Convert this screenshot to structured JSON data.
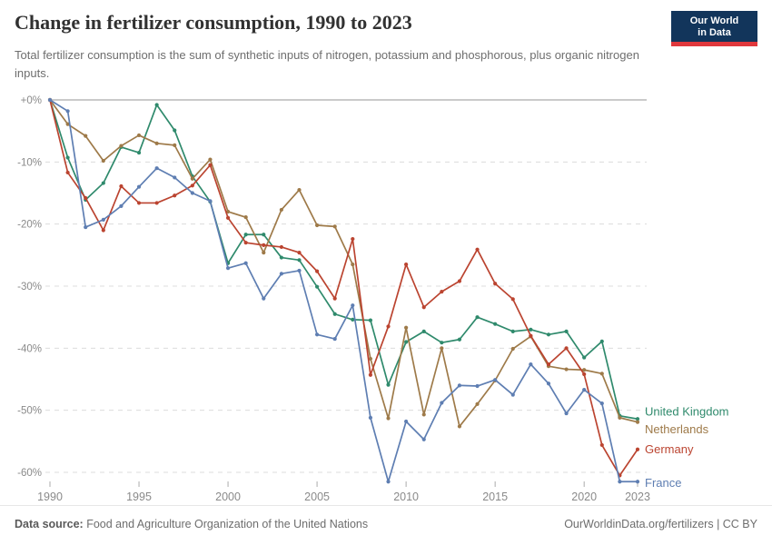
{
  "header": {
    "title": "Change in fertilizer consumption, 1990 to 2023",
    "subtitle": "Total fertilizer consumption is the sum of synthetic inputs of nitrogen, potassium and phosphorous, plus organic nitrogen inputs.",
    "logo": {
      "line1": "Our World",
      "line2": "in Data"
    }
  },
  "footer": {
    "source_label": "Data source:",
    "source_text": " Food and Agriculture Organization of the United Nations",
    "right_text": "OurWorldinData.org/fertilizers | CC BY"
  },
  "chart_data": {
    "type": "line",
    "title": "Change in fertilizer consumption, 1990 to 2023",
    "xlabel": "",
    "ylabel": "",
    "grid": "horizontal-dashed",
    "legend_position": "end-of-line",
    "ylim": [
      -63,
      0
    ],
    "x": [
      1990,
      1991,
      1992,
      1993,
      1994,
      1995,
      1996,
      1997,
      1998,
      1999,
      2000,
      2001,
      2002,
      2003,
      2004,
      2005,
      2006,
      2007,
      2008,
      2009,
      2010,
      2011,
      2012,
      2013,
      2014,
      2015,
      2016,
      2017,
      2018,
      2019,
      2020,
      2021,
      2022,
      2023
    ],
    "x_ticks": {
      "values": [
        1990,
        1995,
        2000,
        2005,
        2010,
        2015,
        2020,
        2023
      ],
      "labels": [
        "1990",
        "1995",
        "2000",
        "2005",
        "2010",
        "2015",
        "2020",
        "2023"
      ]
    },
    "y_ticks": {
      "values": [
        0,
        -10,
        -20,
        -30,
        -40,
        -50,
        -60
      ],
      "labels": [
        "+0%",
        "-10%",
        "-20%",
        "-30%",
        "-40%",
        "-50%",
        "-60%"
      ]
    },
    "axis_color": "#8a8a8a",
    "gridline_color": "#dcdcdc",
    "zero_line_color": "#b8b8b8",
    "series": [
      {
        "name": "United Kingdom",
        "color": "#2F8A6C",
        "values": [
          0,
          -9.3,
          -16.1,
          -13.4,
          -7.6,
          -8.5,
          -0.8,
          -4.9,
          -12.3,
          -16.4,
          -26.3,
          -21.7,
          -21.7,
          -25.4,
          -25.8,
          -30.1,
          -34.5,
          -35.4,
          -35.5,
          -45.9,
          -39.0,
          -37.3,
          -39.1,
          -38.6,
          -35.0,
          -36.1,
          -37.3,
          -37.0,
          -37.8,
          -37.3,
          -41.5,
          -38.9,
          -50.9,
          -51.4
        ]
      },
      {
        "name": "Netherlands",
        "color": "#9E7A49",
        "values": [
          0,
          -3.9,
          -5.8,
          -9.8,
          -7.4,
          -5.7,
          -7.0,
          -7.3,
          -12.7,
          -9.6,
          -18.0,
          -18.9,
          -24.6,
          -17.7,
          -14.5,
          -20.2,
          -20.4,
          -26.5,
          -41.7,
          -51.3,
          -36.7,
          -50.7,
          -40.0,
          -52.6,
          -49.0,
          -45.2,
          -40.1,
          -38.1,
          -42.9,
          -43.4,
          -43.5,
          -44.1,
          -51.2,
          -51.9
        ]
      },
      {
        "name": "Germany",
        "color": "#BB4430",
        "values": [
          0,
          -11.7,
          -15.8,
          -21.0,
          -13.9,
          -16.6,
          -16.6,
          -15.4,
          -13.8,
          -10.5,
          -19.0,
          -23.0,
          -23.4,
          -23.7,
          -24.6,
          -27.6,
          -32.0,
          -22.4,
          -44.3,
          -36.5,
          -26.5,
          -33.4,
          -30.9,
          -29.2,
          -24.1,
          -29.6,
          -32.1,
          -38.0,
          -42.6,
          -40.0,
          -44.2,
          -55.6,
          -60.5,
          -56.3
        ]
      },
      {
        "name": "France",
        "color": "#5E7EB2",
        "values": [
          0,
          -1.8,
          -20.5,
          -19.3,
          -17.1,
          -14.0,
          -11.0,
          -12.5,
          -15.0,
          -16.3,
          -27.1,
          -26.3,
          -32.0,
          -28.0,
          -27.5,
          -37.8,
          -38.5,
          -33.1,
          -51.2,
          -61.5,
          -51.8,
          -54.7,
          -48.8,
          -46.0,
          -46.1,
          -45.1,
          -47.5,
          -42.6,
          -45.7,
          -50.5,
          -46.7,
          -48.9,
          -61.5,
          -61.5
        ]
      }
    ]
  }
}
